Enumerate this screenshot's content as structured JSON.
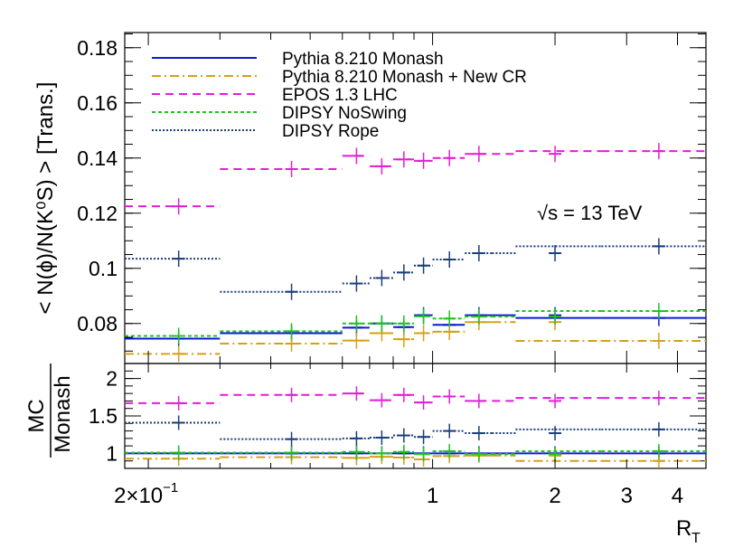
{
  "chart_data": {
    "type": "line",
    "xscale": "log",
    "xlim": [
      0.175,
      4.7
    ],
    "bins": [
      0.175,
      0.3,
      0.6,
      0.7,
      0.8,
      0.9,
      1.0,
      1.2,
      1.4,
      1.6,
      2.6,
      4.7
    ],
    "points_x": [
      0.2375,
      0.45,
      0.65,
      0.75,
      0.85,
      0.95,
      1.1,
      1.3,
      2.0,
      3.6
    ],
    "x_tick_labels": [
      "2×10",
      "−1",
      "1",
      "2",
      "3",
      "4"
    ],
    "xlabel": "R",
    "xlabel_sub": "T",
    "energy_label": "√s = 13 TeV",
    "top": {
      "ylabel": "< N(ϕ)/N(K⁰S) > [Trans.]",
      "ylim": [
        0.0655,
        0.1855
      ],
      "yticks": [
        "0.08",
        "0.1",
        "0.12",
        "0.14",
        "0.16",
        "0.18"
      ],
      "series": [
        {
          "name": "Pythia 8.210 Monash",
          "color": "#0a1ad8",
          "dash": "solid",
          "values": [
            0.0745,
            0.0765,
            0.0785,
            0.08,
            0.0787,
            0.083,
            0.0795,
            0.083,
            0.083,
            0.082,
            0.082
          ]
        },
        {
          "name": "Pythia 8.210 Monash + New CR",
          "color": "#d4a017",
          "dash": "dashdot",
          "values": [
            0.069,
            0.0727,
            0.0738,
            0.0765,
            0.0743,
            0.0765,
            0.077,
            0.0805,
            0.0805,
            0.0737,
            0.0737
          ]
        },
        {
          "name": "EPOS 1.3 LHC",
          "color": "#e01fd6",
          "dash": "dash",
          "values": [
            0.1225,
            0.136,
            0.1408,
            0.137,
            0.1395,
            0.139,
            0.14,
            0.1415,
            0.1415,
            0.1425,
            0.1425
          ]
        },
        {
          "name": "DIPSY NoSwing",
          "color": "#21c41f",
          "dash": "dot",
          "values": [
            0.0755,
            0.0772,
            0.08,
            0.08,
            0.08,
            0.0826,
            0.0818,
            0.0825,
            0.0825,
            0.0845,
            0.0845
          ]
        },
        {
          "name": "DIPSY Rope",
          "color": "#1a3f7a",
          "dash": "dense",
          "values": [
            0.1035,
            0.0915,
            0.0945,
            0.0965,
            0.0985,
            0.101,
            0.1032,
            0.1055,
            0.1055,
            0.108,
            0.108
          ]
        }
      ]
    },
    "ratio": {
      "ylabel_top": "MC",
      "ylabel_bottom": "Monash",
      "ylim": [
        0.8,
        2.2
      ],
      "yticks": [
        "1",
        "1.5",
        "2"
      ],
      "series": [
        {
          "name": "Pythia 8.210 Monash",
          "values": [
            1.0,
            1.0,
            1.0,
            1.0,
            1.0,
            1.0,
            1.0,
            1.0,
            1.0,
            1.0,
            1.0
          ]
        },
        {
          "name": "Pythia 8.210 Monash + New CR",
          "values": [
            0.93,
            0.95,
            0.94,
            0.955,
            0.945,
            0.92,
            0.965,
            0.97,
            0.97,
            0.9,
            0.9
          ]
        },
        {
          "name": "EPOS 1.3 LHC",
          "values": [
            1.67,
            1.78,
            1.8,
            1.71,
            1.78,
            1.68,
            1.76,
            1.7,
            1.7,
            1.74,
            1.74
          ]
        },
        {
          "name": "DIPSY NoSwing",
          "values": [
            1.01,
            1.01,
            1.02,
            1.0,
            1.02,
            0.99,
            1.03,
            0.99,
            0.99,
            1.03,
            1.03
          ]
        },
        {
          "name": "DIPSY Rope",
          "values": [
            1.41,
            1.19,
            1.2,
            1.21,
            1.24,
            1.22,
            1.3,
            1.27,
            1.27,
            1.32,
            1.32
          ]
        }
      ]
    },
    "legend_position": "top-left"
  }
}
